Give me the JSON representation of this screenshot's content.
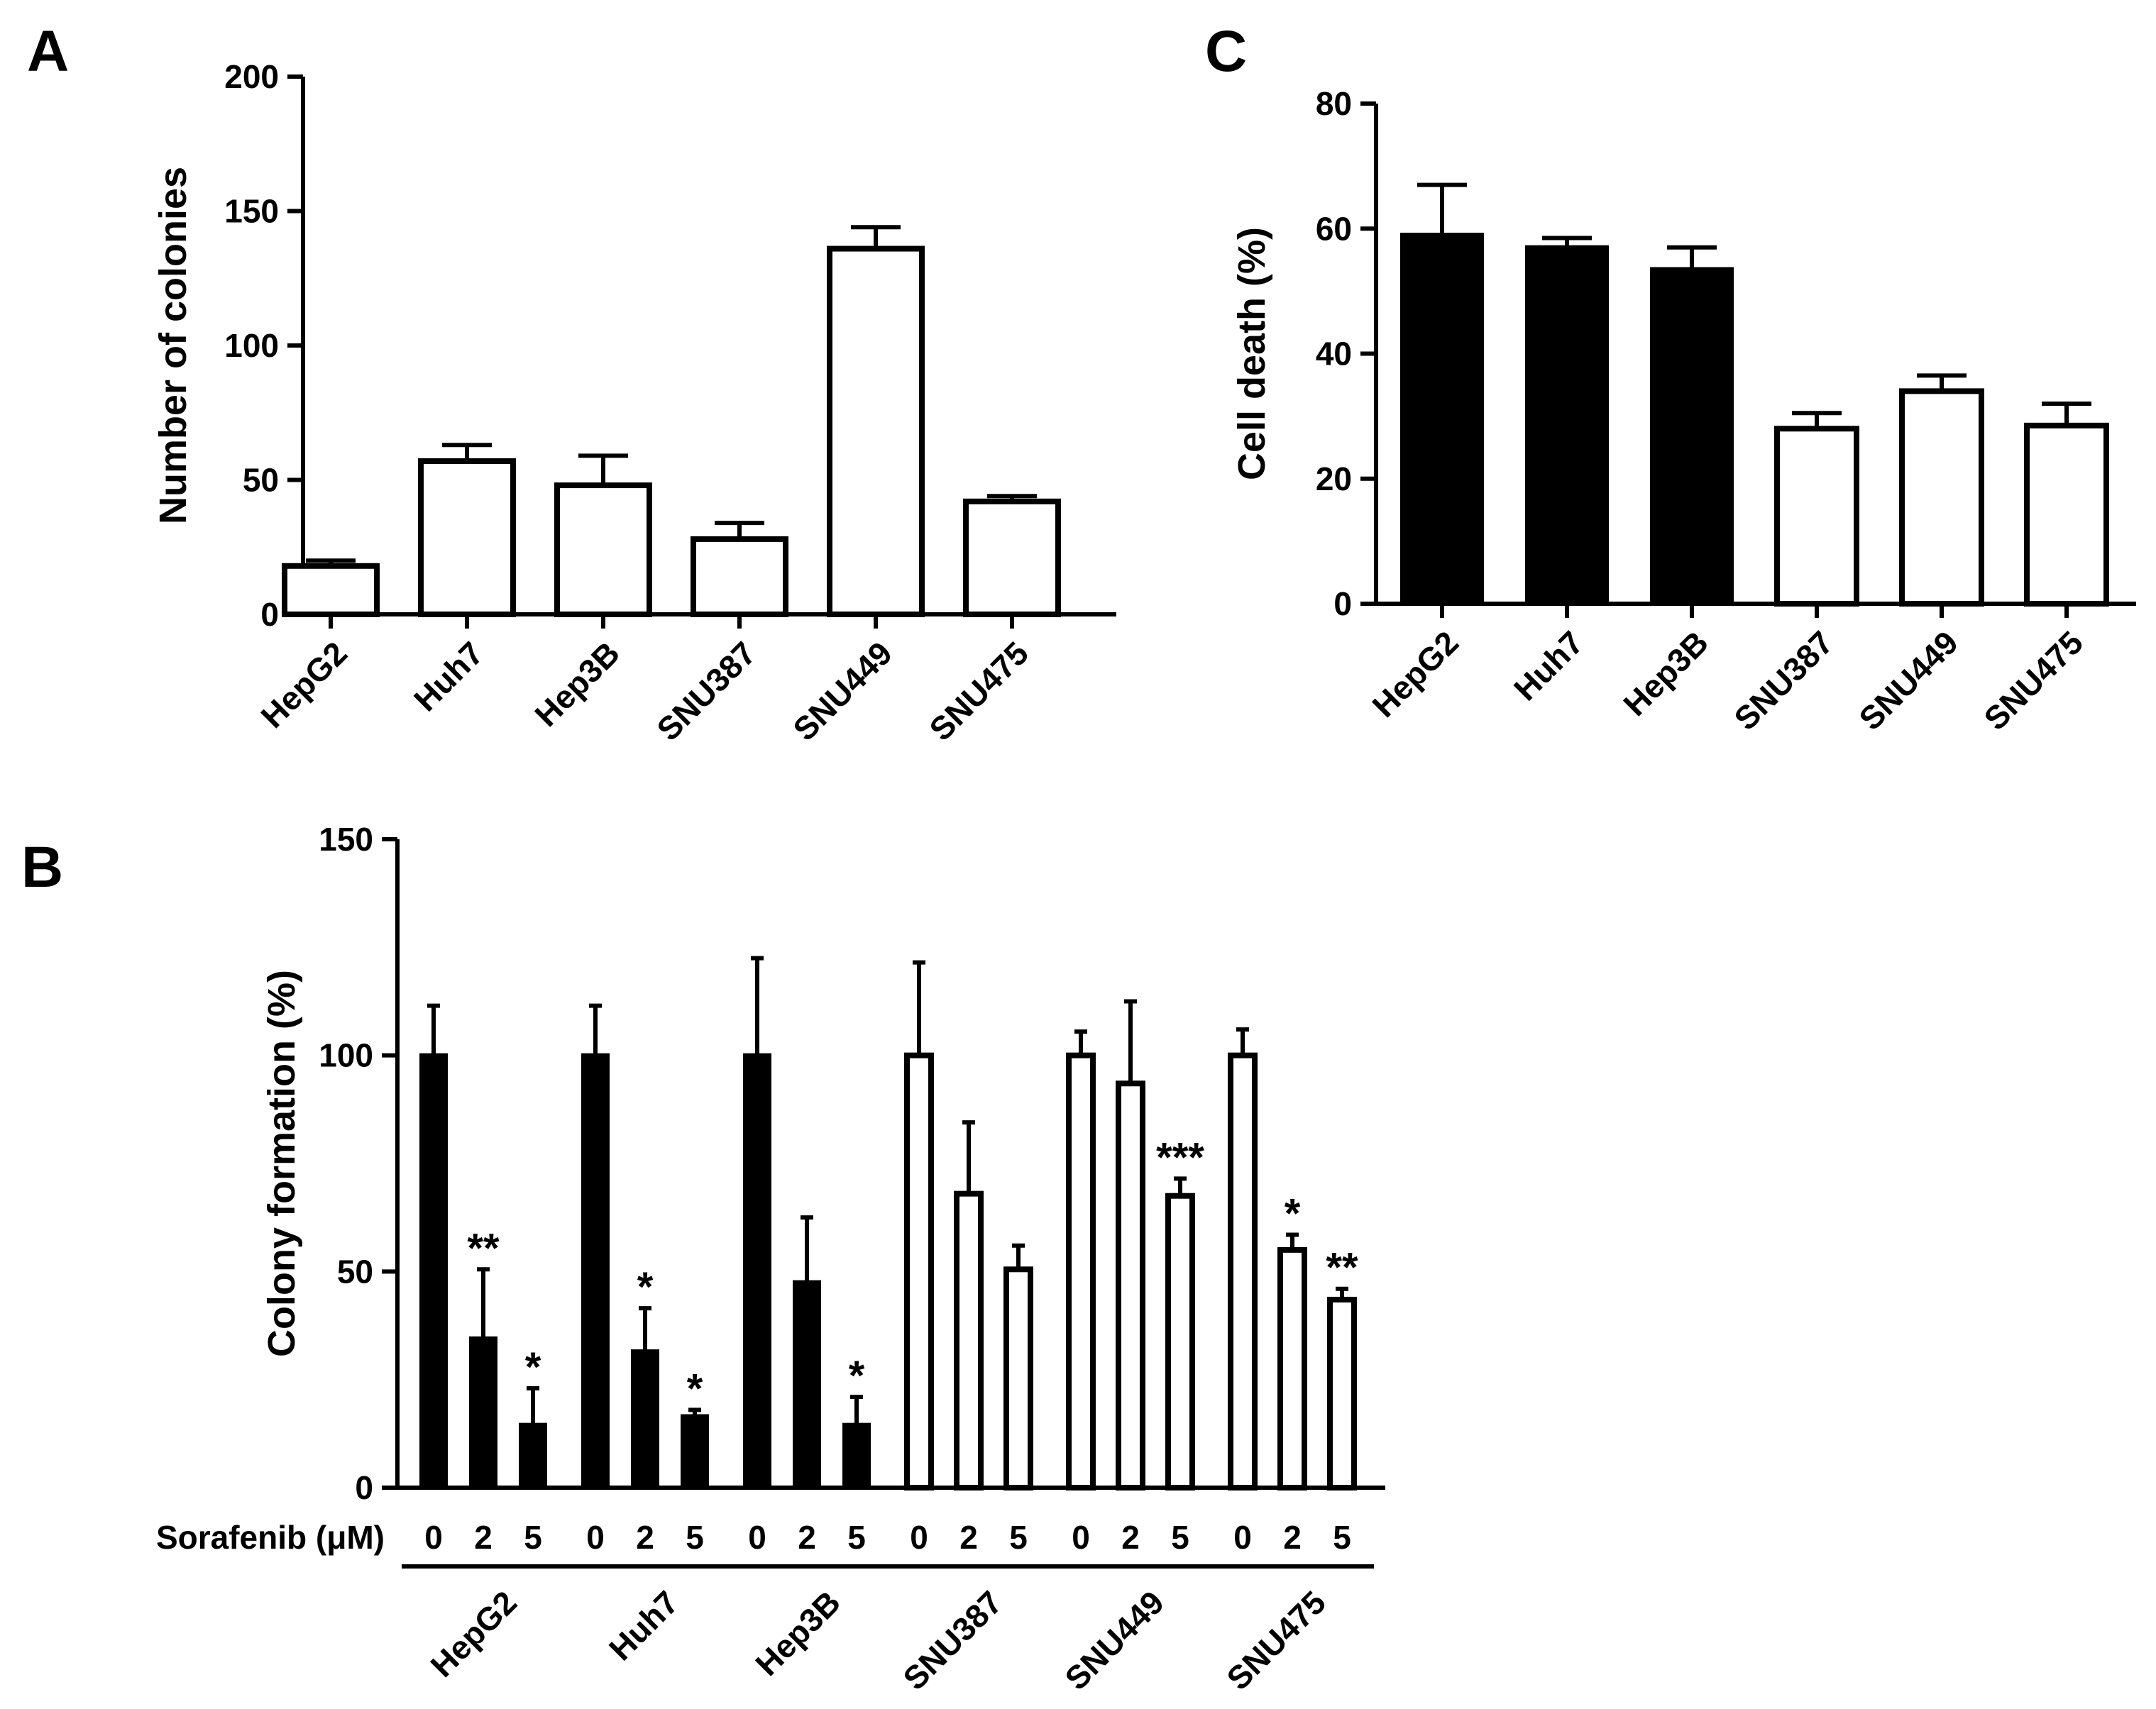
{
  "panel_labels": {
    "a": "A",
    "b": "B",
    "c": "C"
  },
  "colors": {
    "filled": "#000000",
    "open": "#ffffff"
  },
  "chart_data": [
    {
      "id": "A",
      "type": "bar",
      "title": "",
      "ylabel": "Number of colonies",
      "xlabel": "",
      "ylim": [
        0,
        200
      ],
      "yticks": [
        0,
        50,
        100,
        150,
        200
      ],
      "categories": [
        "HepG2",
        "Huh7",
        "Hep3B",
        "SNU387",
        "SNU449",
        "SNU475"
      ],
      "values": [
        18,
        57,
        48,
        28,
        136,
        42
      ],
      "errors": [
        2,
        6,
        11,
        6,
        8,
        2
      ],
      "fills": [
        "open",
        "open",
        "open",
        "open",
        "open",
        "open"
      ]
    },
    {
      "id": "C",
      "type": "bar",
      "title": "",
      "ylabel": "Cell death (%)",
      "xlabel": "",
      "ylim": [
        0,
        80
      ],
      "yticks": [
        0,
        20,
        40,
        60,
        80
      ],
      "categories": [
        "HepG2",
        "Huh7",
        "Hep3B",
        "SNU387",
        "SNU449",
        "SNU475"
      ],
      "values": [
        59,
        57,
        53.5,
        28,
        34,
        28.5
      ],
      "errors": [
        8,
        1.5,
        3.5,
        2.5,
        2.5,
        3.5
      ],
      "fills": [
        "filled",
        "filled",
        "filled",
        "open",
        "open",
        "open"
      ]
    },
    {
      "id": "B",
      "type": "bar",
      "title": "",
      "ylabel": "Colony formation (%)",
      "xlabel": "Sorafenib (μM)",
      "ylim": [
        0,
        150
      ],
      "yticks": [
        0,
        50,
        100,
        150
      ],
      "doses": [
        "0",
        "2",
        "5"
      ],
      "groups": [
        {
          "name": "HepG2",
          "fill": "filled",
          "values": [
            100,
            34.5,
            14.5
          ],
          "errors": [
            11.5,
            16,
            8.5
          ],
          "sig": [
            "",
            "**",
            "*"
          ]
        },
        {
          "name": "Huh7",
          "fill": "filled",
          "values": [
            100,
            31.5,
            16.5
          ],
          "errors": [
            11.5,
            10,
            1.5
          ],
          "sig": [
            "",
            "*",
            "*"
          ]
        },
        {
          "name": "Hep3B",
          "fill": "filled",
          "values": [
            100,
            47.5,
            14.5
          ],
          "errors": [
            22.5,
            15,
            6.5
          ],
          "sig": [
            "",
            "",
            "*"
          ]
        },
        {
          "name": "SNU387",
          "fill": "open",
          "values": [
            100,
            68,
            50.5
          ],
          "errors": [
            21.5,
            16.5,
            5.5
          ],
          "sig": [
            "",
            "",
            ""
          ]
        },
        {
          "name": "SNU449",
          "fill": "open",
          "values": [
            100,
            93.5,
            67.5
          ],
          "errors": [
            5.5,
            19,
            4
          ],
          "sig": [
            "",
            "",
            "***"
          ]
        },
        {
          "name": "SNU475",
          "fill": "open",
          "values": [
            100,
            55,
            43.5
          ],
          "errors": [
            6,
            3.5,
            2.5
          ],
          "sig": [
            "",
            "*",
            "**"
          ]
        }
      ]
    }
  ]
}
